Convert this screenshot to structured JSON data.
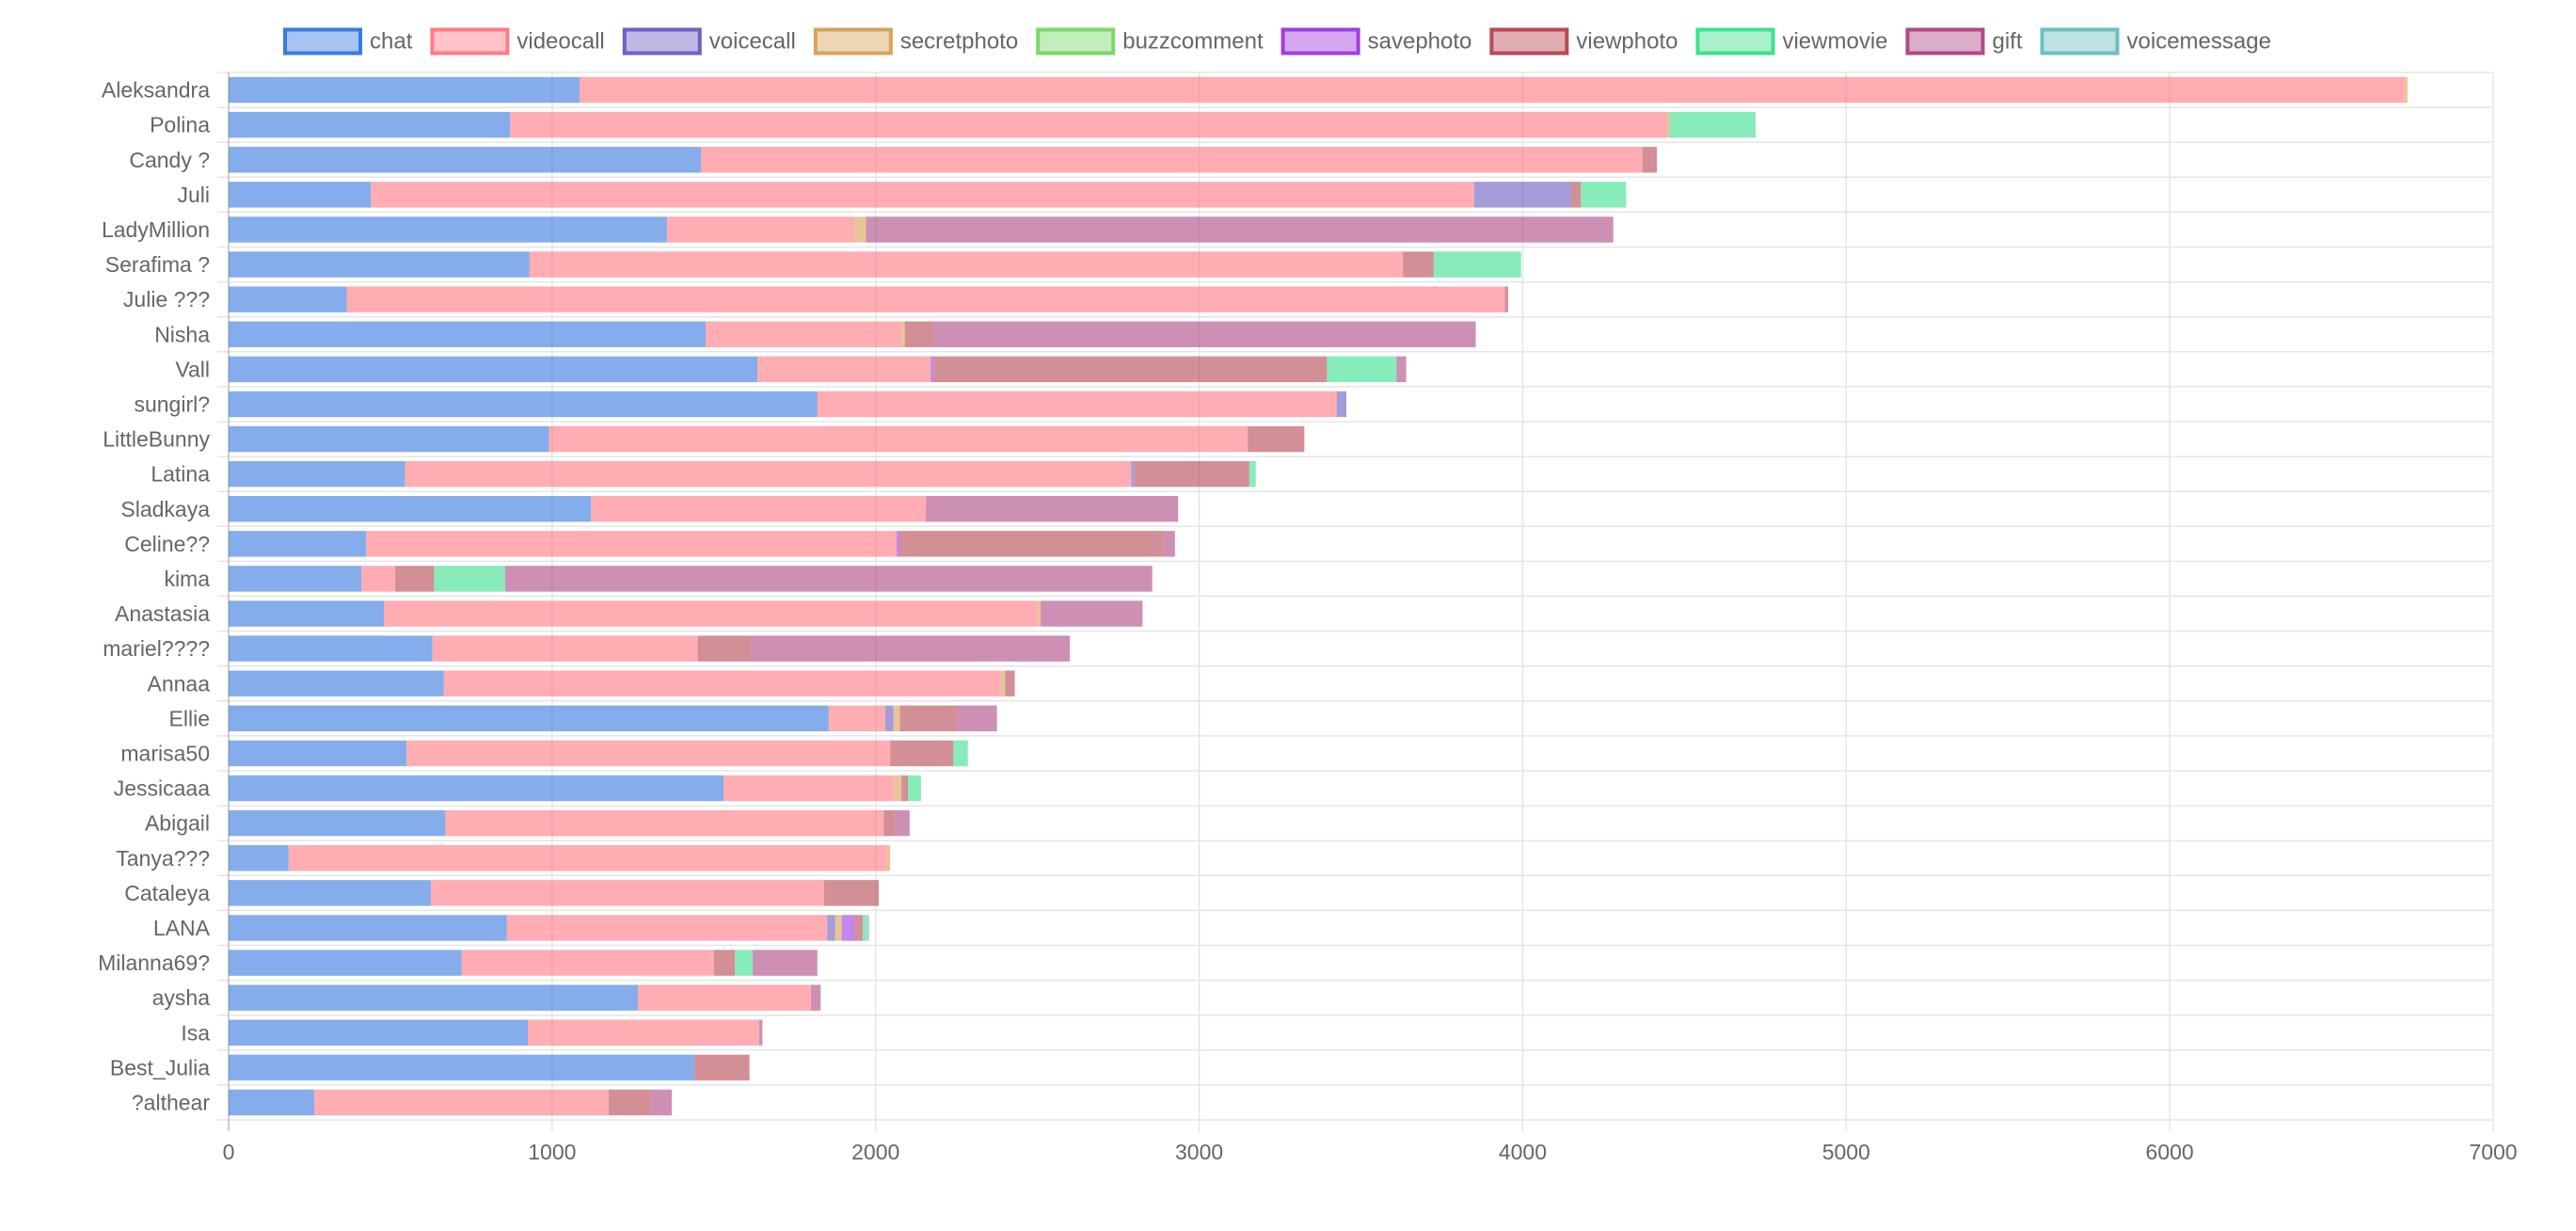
{
  "chart_data": {
    "type": "bar",
    "orientation": "horizontal",
    "stacked": true,
    "title": "",
    "xlabel": "",
    "ylabel": "",
    "xlim": [
      0,
      7000
    ],
    "x_ticks": [
      0,
      1000,
      2000,
      3000,
      4000,
      5000,
      6000,
      7000
    ],
    "grid": true,
    "legend_position": "top",
    "categories": [
      "Aleksandra",
      "Polina",
      "Candy ?",
      "Juli",
      "LadyMillion",
      "Serafima ?",
      "Julie ???",
      "Nisha",
      "Vall",
      "sungirl?",
      "LittleBunny",
      "Latina",
      "Sladkaya",
      "Celine??",
      "kima",
      "Anastasia",
      "mariel????",
      "Annaa",
      "Ellie",
      "marisa50",
      "Jessicaaa",
      "Abigail",
      "Tanya???",
      "Cataleya",
      "LANA",
      "Milanna69?",
      "aysha",
      "Isa",
      "Best_Julia",
      "?althear"
    ],
    "series": [
      {
        "name": "chat",
        "color": "#3a7be0",
        "values": [
          1085,
          870,
          1460,
          440,
          1355,
          930,
          365,
          1475,
          1635,
          1820,
          990,
          545,
          1120,
          425,
          410,
          480,
          630,
          665,
          1855,
          550,
          1530,
          670,
          185,
          625,
          860,
          720,
          1265,
          925,
          1440,
          265
        ]
      },
      {
        "name": "videocall",
        "color": "#ff7b85",
        "values": [
          5640,
          3575,
          2910,
          3410,
          580,
          2700,
          3580,
          605,
          535,
          1605,
          2160,
          2245,
          1035,
          1640,
          105,
          2020,
          820,
          1720,
          175,
          1495,
          525,
          1355,
          1850,
          1215,
          990,
          780,
          535,
          715,
          0,
          910
        ]
      },
      {
        "name": "voicecall",
        "color": "#6e61c4",
        "values": [
          0,
          0,
          0,
          300,
          0,
          0,
          0,
          0,
          0,
          30,
          0,
          10,
          0,
          0,
          0,
          0,
          0,
          0,
          25,
          0,
          0,
          0,
          0,
          0,
          25,
          0,
          0,
          0,
          0,
          0
        ]
      },
      {
        "name": "secretphoto",
        "color": "#d6a35a",
        "values": [
          10,
          10,
          0,
          0,
          35,
          0,
          0,
          10,
          0,
          0,
          0,
          0,
          0,
          0,
          0,
          10,
          0,
          15,
          20,
          0,
          25,
          0,
          10,
          0,
          20,
          0,
          0,
          0,
          0,
          0
        ]
      },
      {
        "name": "buzzcomment",
        "color": "#7bd86a",
        "values": [
          0,
          0,
          0,
          0,
          0,
          0,
          0,
          0,
          0,
          0,
          0,
          0,
          0,
          0,
          0,
          0,
          0,
          0,
          0,
          0,
          0,
          0,
          0,
          0,
          0,
          0,
          0,
          0,
          0,
          0
        ]
      },
      {
        "name": "savephoto",
        "color": "#a23ce0",
        "values": [
          0,
          0,
          0,
          0,
          0,
          0,
          0,
          0,
          10,
          0,
          0,
          0,
          0,
          10,
          0,
          0,
          0,
          0,
          0,
          0,
          0,
          0,
          0,
          0,
          40,
          0,
          0,
          0,
          0,
          0
        ]
      },
      {
        "name": "viewphoto",
        "color": "#b84a55",
        "values": [
          0,
          0,
          45,
          30,
          0,
          95,
          10,
          90,
          1215,
          0,
          175,
          355,
          0,
          815,
          120,
          0,
          165,
          30,
          175,
          195,
          20,
          35,
          0,
          170,
          25,
          65,
          0,
          0,
          170,
          130
        ]
      },
      {
        "name": "viewmovie",
        "color": "#3ee08e",
        "values": [
          0,
          265,
          0,
          140,
          0,
          270,
          0,
          0,
          215,
          0,
          0,
          20,
          0,
          0,
          220,
          0,
          0,
          0,
          0,
          45,
          40,
          0,
          0,
          0,
          10,
          55,
          0,
          0,
          0,
          0
        ]
      },
      {
        "name": "gift",
        "color": "#b04a88",
        "values": [
          0,
          0,
          0,
          0,
          2310,
          0,
          0,
          1675,
          30,
          0,
          0,
          0,
          780,
          35,
          2000,
          315,
          985,
          0,
          125,
          0,
          0,
          45,
          0,
          0,
          0,
          200,
          30,
          10,
          0,
          65
        ]
      },
      {
        "name": "voicemessage",
        "color": "#6ebfbf",
        "values": [
          0,
          0,
          0,
          0,
          0,
          0,
          0,
          0,
          0,
          0,
          0,
          0,
          0,
          0,
          0,
          0,
          0,
          0,
          0,
          0,
          0,
          0,
          0,
          0,
          10,
          0,
          0,
          0,
          0,
          0
        ]
      }
    ]
  }
}
